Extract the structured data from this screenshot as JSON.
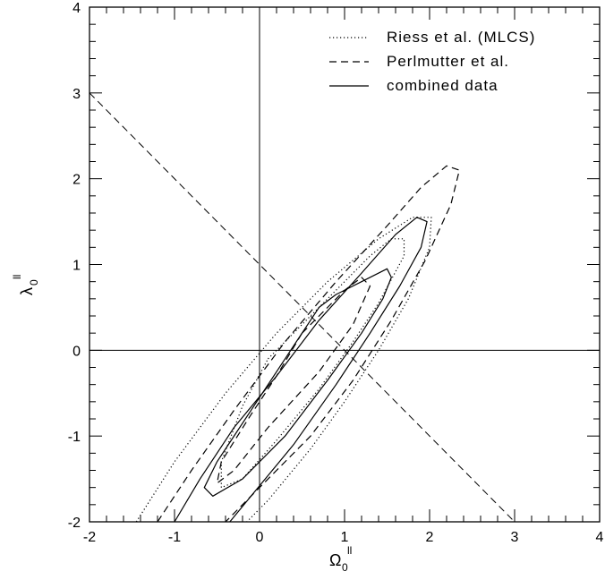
{
  "chart_data": {
    "type": "line",
    "xlim": [
      -2,
      4
    ],
    "ylim": [
      -2,
      4
    ],
    "x_ticks": [
      -2,
      -1,
      0,
      1,
      2,
      3,
      4
    ],
    "y_ticks": [
      -2,
      -1,
      0,
      1,
      2,
      3,
      4
    ],
    "xlabel": {
      "symbol": "Ω",
      "subscript": "0",
      "superscript": "ll"
    },
    "ylabel": {
      "symbol": "λ",
      "subscript": "0",
      "superscript": "ll"
    },
    "grid": false,
    "legend_position": "top-right",
    "legend": [
      {
        "label": "Riess et al. (MLCS)",
        "style": "dotted"
      },
      {
        "label": "Perlmutter et al.",
        "style": "dashed"
      },
      {
        "label": "combined data",
        "style": "solid"
      }
    ],
    "reference_lines": [
      {
        "name": "flat-universe",
        "style": "dashed",
        "points": [
          [
            -2,
            3
          ],
          [
            3,
            -2
          ]
        ]
      },
      {
        "name": "omega-zero",
        "style": "solid",
        "points": [
          [
            0,
            -2
          ],
          [
            0,
            4
          ]
        ]
      },
      {
        "name": "lambda-zero",
        "style": "solid",
        "points": [
          [
            -2,
            0
          ],
          [
            4,
            0
          ]
        ]
      }
    ],
    "series": [
      {
        "dataset": "combined",
        "level": "inner",
        "style": "solid",
        "points": [
          [
            0.7,
            0.5
          ],
          [
            0.9,
            0.65
          ],
          [
            1.2,
            0.8
          ],
          [
            1.5,
            0.95
          ],
          [
            1.55,
            0.85
          ],
          [
            1.45,
            0.6
          ],
          [
            1.2,
            0.2
          ],
          [
            0.8,
            -0.35
          ],
          [
            0.3,
            -1.0
          ],
          [
            -0.2,
            -1.5
          ],
          [
            -0.55,
            -1.7
          ],
          [
            -0.65,
            -1.6
          ],
          [
            -0.5,
            -1.3
          ],
          [
            -0.1,
            -0.7
          ],
          [
            0.3,
            -0.1
          ],
          [
            0.7,
            0.5
          ]
        ]
      },
      {
        "dataset": "combined",
        "level": "outer",
        "style": "solid",
        "points": [
          [
            -1.0,
            -2.0
          ],
          [
            -0.7,
            -1.5
          ],
          [
            -0.3,
            -0.9
          ],
          [
            0.2,
            -0.3
          ],
          [
            0.7,
            0.35
          ],
          [
            1.2,
            0.9
          ],
          [
            1.6,
            1.35
          ],
          [
            1.85,
            1.55
          ],
          [
            1.97,
            1.5
          ],
          [
            1.9,
            1.2
          ],
          [
            1.65,
            0.75
          ],
          [
            1.3,
            0.2
          ],
          [
            0.9,
            -0.4
          ],
          [
            0.4,
            -1.1
          ],
          [
            -0.1,
            -1.7
          ],
          [
            -0.35,
            -2.0
          ]
        ]
      },
      {
        "dataset": "perlmutter",
        "level": "inner",
        "style": "dashed",
        "points": [
          [
            0.5,
            0.2
          ],
          [
            1.0,
            0.7
          ],
          [
            1.2,
            0.85
          ],
          [
            1.3,
            0.75
          ],
          [
            1.1,
            0.3
          ],
          [
            0.7,
            -0.25
          ],
          [
            0.1,
            -0.9
          ],
          [
            -0.3,
            -1.4
          ],
          [
            -0.5,
            -1.55
          ],
          [
            -0.45,
            -1.3
          ],
          [
            -0.1,
            -0.75
          ],
          [
            0.2,
            -0.3
          ],
          [
            0.5,
            0.2
          ]
        ]
      },
      {
        "dataset": "perlmutter",
        "level": "outer",
        "style": "dashed",
        "points": [
          [
            -1.2,
            -2.0
          ],
          [
            -0.8,
            -1.4
          ],
          [
            -0.3,
            -0.7
          ],
          [
            0.3,
            0.1
          ],
          [
            0.9,
            0.8
          ],
          [
            1.5,
            1.45
          ],
          [
            1.9,
            1.9
          ],
          [
            2.2,
            2.15
          ],
          [
            2.35,
            2.1
          ],
          [
            2.25,
            1.7
          ],
          [
            1.95,
            1.05
          ],
          [
            1.55,
            0.35
          ],
          [
            1.1,
            -0.35
          ],
          [
            0.6,
            -1.0
          ],
          [
            0.0,
            -1.6
          ],
          [
            -0.4,
            -2.0
          ]
        ]
      },
      {
        "dataset": "riess",
        "level": "inner",
        "style": "dotted",
        "points": [
          [
            0.1,
            -0.1
          ],
          [
            0.6,
            0.4
          ],
          [
            1.0,
            0.8
          ],
          [
            1.3,
            1.1
          ],
          [
            1.55,
            1.3
          ],
          [
            1.7,
            1.3
          ],
          [
            1.7,
            1.1
          ],
          [
            1.4,
            0.55
          ],
          [
            1.1,
            0.1
          ],
          [
            0.7,
            -0.45
          ],
          [
            0.2,
            -1.05
          ],
          [
            -0.2,
            -1.5
          ],
          [
            -0.45,
            -1.6
          ],
          [
            -0.45,
            -1.3
          ],
          [
            -0.2,
            -0.65
          ],
          [
            0.1,
            -0.1
          ]
        ]
      },
      {
        "dataset": "riess",
        "level": "outer",
        "style": "dotted",
        "points": [
          [
            -1.45,
            -2.0
          ],
          [
            -1.0,
            -1.3
          ],
          [
            -0.4,
            -0.5
          ],
          [
            0.2,
            0.2
          ],
          [
            0.8,
            0.8
          ],
          [
            1.4,
            1.3
          ],
          [
            1.8,
            1.55
          ],
          [
            2.02,
            1.55
          ],
          [
            2.0,
            1.2
          ],
          [
            1.75,
            0.6
          ],
          [
            1.4,
            0.0
          ],
          [
            1.0,
            -0.6
          ],
          [
            0.6,
            -1.15
          ],
          [
            0.1,
            -1.75
          ],
          [
            -0.15,
            -2.0
          ]
        ]
      }
    ]
  }
}
